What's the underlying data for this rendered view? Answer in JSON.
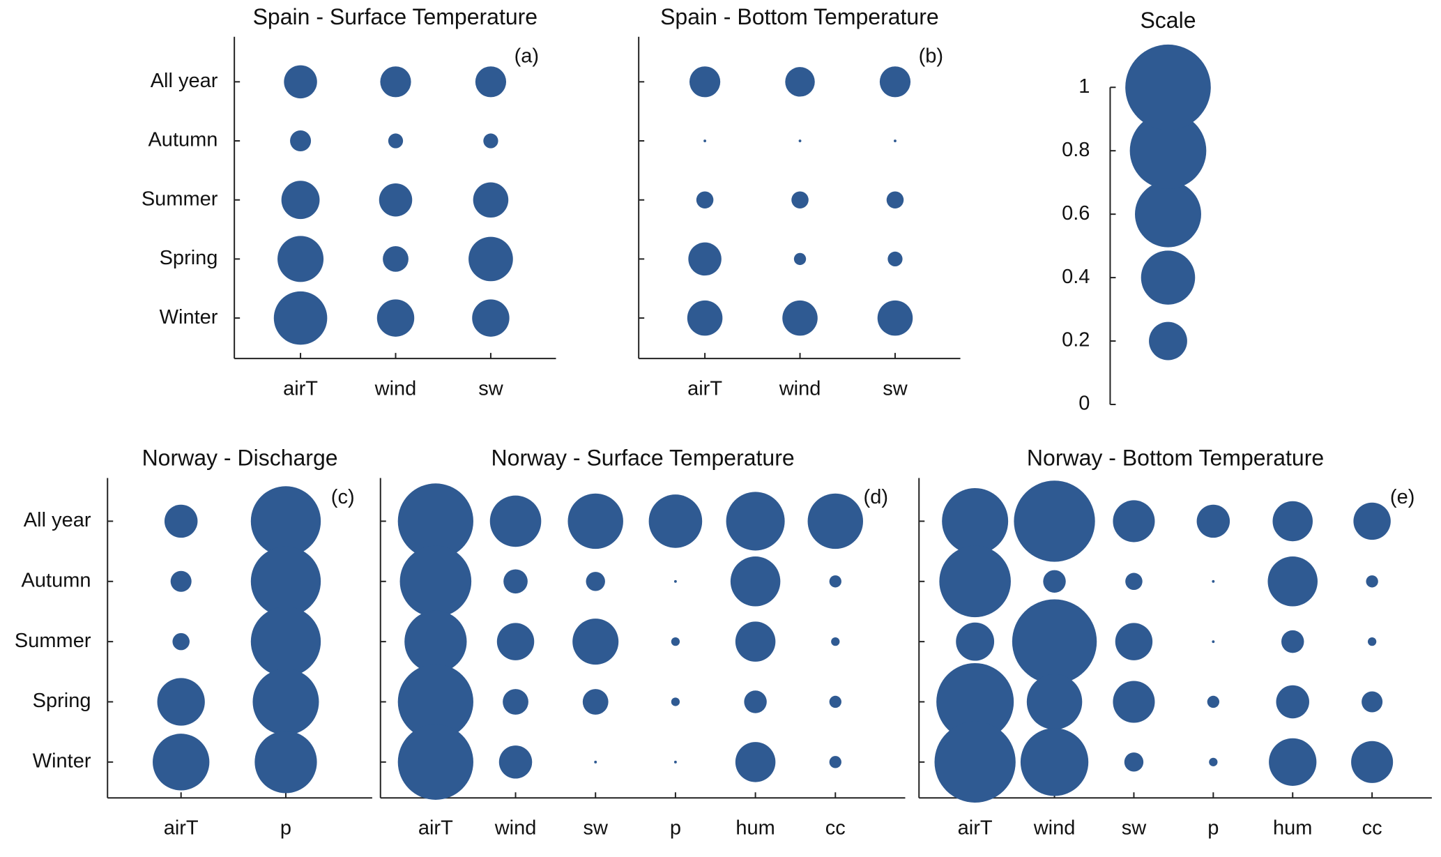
{
  "chart_data": [
    {
      "type": "bubble",
      "title": "Spain - Surface Temperature",
      "label": "(a)",
      "color": "#2f5a92",
      "x": [
        "airT",
        "wind",
        "sw"
      ],
      "y": [
        "All year",
        "Autumn",
        "Summer",
        "Spring",
        "Winter"
      ],
      "values": [
        [
          0.15,
          0.13,
          0.13
        ],
        [
          0.06,
          0.03,
          0.03
        ],
        [
          0.2,
          0.15,
          0.17
        ],
        [
          0.29,
          0.09,
          0.27
        ],
        [
          0.39,
          0.19,
          0.19
        ]
      ]
    },
    {
      "type": "bubble",
      "title": "Spain - Bottom Temperature",
      "label": "(b)",
      "color": "#2f5a92",
      "x": [
        "airT",
        "wind",
        "sw"
      ],
      "values": [
        [
          0.13,
          0.12,
          0.13
        ],
        [
          0.001,
          0.001,
          0.001
        ],
        [
          0.04,
          0.04,
          0.04
        ],
        [
          0.15,
          0.02,
          0.03
        ],
        [
          0.17,
          0.17,
          0.17
        ]
      ]
    },
    {
      "type": "scale",
      "title": "Scale",
      "color": "#2f5a92",
      "values": [
        0.2,
        0.4,
        0.6,
        0.8,
        1
      ],
      "ylim": [
        0,
        1
      ],
      "yticks": [
        0,
        0.2,
        0.4,
        0.6,
        0.8,
        1
      ]
    },
    {
      "type": "bubble",
      "title": "Norway - Discharge",
      "label": "(c)",
      "color": "#2f5a92",
      "x": [
        "airT",
        "p"
      ],
      "y": [
        "All year",
        "Autumn",
        "Summer",
        "Spring",
        "Winter"
      ],
      "values": [
        [
          0.15,
          0.67
        ],
        [
          0.06,
          0.67
        ],
        [
          0.04,
          0.67
        ],
        [
          0.31,
          0.6
        ],
        [
          0.44,
          0.53
        ]
      ]
    },
    {
      "type": "bubble",
      "title": "Norway - Surface Temperature",
      "label": "(d)",
      "color": "#2f5a92",
      "x": [
        "airT",
        "wind",
        "sw",
        "p",
        "hum",
        "cc"
      ],
      "values": [
        [
          0.78,
          0.36,
          0.42,
          0.39,
          0.47,
          0.42
        ],
        [
          0.7,
          0.08,
          0.05,
          0.001,
          0.34,
          0.02
        ],
        [
          0.53,
          0.19,
          0.29,
          0.01,
          0.22,
          0.01
        ],
        [
          0.78,
          0.09,
          0.09,
          0.01,
          0.07,
          0.02
        ],
        [
          0.78,
          0.15,
          0.001,
          0.001,
          0.22,
          0.02
        ]
      ]
    },
    {
      "type": "bubble",
      "title": "Norway - Bottom Temperature",
      "label": "(e)",
      "color": "#2f5a92",
      "x": [
        "airT",
        "wind",
        "sw",
        "p",
        "hum",
        "cc"
      ],
      "values": [
        [
          0.6,
          0.9,
          0.24,
          0.15,
          0.22,
          0.19
        ],
        [
          0.7,
          0.07,
          0.04,
          0.001,
          0.34,
          0.02
        ],
        [
          0.2,
          0.98,
          0.19,
          0.001,
          0.07,
          0.01
        ],
        [
          0.82,
          0.42,
          0.24,
          0.02,
          0.15,
          0.06
        ],
        [
          0.9,
          0.63,
          0.05,
          0.01,
          0.31,
          0.24
        ]
      ]
    }
  ]
}
